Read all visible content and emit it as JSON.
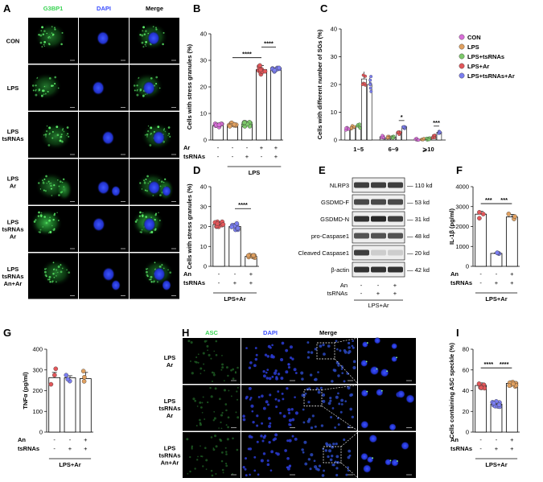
{
  "colors": {
    "green": "#39d353",
    "blue": "#3a4dff",
    "con": "#d96fd9",
    "lps": "#e0a060",
    "tsr": "#7cc96a",
    "ar": "#e2575a",
    "all": "#7b7ef0"
  },
  "panels": {
    "A": {
      "letter": "A",
      "cols": [
        "G3BP1",
        "DAPI",
        "Merge"
      ],
      "rows": [
        "CON",
        "LPS",
        "LPS\ntsRNAs",
        "LPS\nAr",
        "LPS\ntsRNAs\nAr",
        "LPS\ntsRNAs\nAn+Ar"
      ]
    },
    "H": {
      "letter": "H",
      "cols": [
        "ASC",
        "DAPI",
        "Merge"
      ],
      "rows": [
        "LPS\nAr",
        "LPS\ntsRNAs\nAr",
        "LPS\ntsRNAs\nAn+Ar"
      ]
    },
    "E": {
      "letter": "E",
      "bands": [
        {
          "name": "NLRP3",
          "kd": "110 kd"
        },
        {
          "name": "GSDMD-F",
          "kd": "53 kd"
        },
        {
          "name": "GSDMD-N",
          "kd": "31 kd"
        },
        {
          "name": "pro-Caspase1",
          "kd": "48 kd"
        },
        {
          "name": "Cleaved Caspase1",
          "kd": "20 kd"
        },
        {
          "name": "β-actin",
          "kd": "42 kd"
        }
      ],
      "conditions": [
        {
          "label": "An",
          "values": [
            "-",
            "-",
            "+"
          ]
        },
        {
          "label": "tsRNAs",
          "values": [
            "-",
            "+",
            "+"
          ]
        }
      ],
      "group": "LPS+Ar"
    }
  },
  "chart_data": [
    {
      "id": "B",
      "type": "bar",
      "ylabel": "Cells with stress granules (%)",
      "ylim": [
        0,
        40
      ],
      "yticks": [
        0,
        10,
        20,
        30,
        40
      ],
      "values": [
        5.5,
        5.8,
        6.0,
        26.5,
        26.5
      ],
      "errors": [
        0.5,
        0.7,
        0.9,
        1.5,
        0.6
      ],
      "colors": [
        "con",
        "lps",
        "tsr",
        "ar",
        "all"
      ],
      "conditions": [
        {
          "label": "Ar",
          "values": [
            "-",
            "-",
            "-",
            "+",
            "+"
          ]
        },
        {
          "label": "tsRNAs",
          "values": [
            "-",
            "-",
            "+",
            "-",
            "+"
          ]
        }
      ],
      "group": "LPS",
      "group_span": [
        1,
        4
      ],
      "sig": [
        {
          "a": 1,
          "b": 3,
          "label": "****",
          "y": 31
        },
        {
          "a": 3,
          "b": 4,
          "label": "****",
          "y": 35
        }
      ]
    },
    {
      "id": "C",
      "type": "bar",
      "ylabel": "Cells with different number of SGs (%)",
      "ylim": [
        0,
        40
      ],
      "yticks": [
        0,
        10,
        20,
        30,
        40
      ],
      "categories": [
        "1~5",
        "6~9",
        "⩾10"
      ],
      "legend": [
        "CON",
        "LPS",
        "LPS+tsRNAs",
        "LPS+Ar",
        "LPS+tsRNAs+Ar"
      ],
      "series": [
        {
          "name": "CON",
          "color": "con",
          "values": [
            4,
            1.2,
            0.3
          ]
        },
        {
          "name": "LPS",
          "color": "lps",
          "values": [
            4.5,
            0.8,
            0.3
          ]
        },
        {
          "name": "LPS+tsRNAs",
          "color": "tsr",
          "values": [
            5,
            1.0,
            0.3
          ]
        },
        {
          "name": "LPS+Ar",
          "color": "ar",
          "values": [
            22,
            2.5,
            1.2
          ]
        },
        {
          "name": "LPS+tsRNAs+Ar",
          "color": "all",
          "values": [
            20,
            4.8,
            2.8
          ]
        }
      ],
      "sig": [
        {
          "cat": 1,
          "a": 3,
          "b": 4,
          "label": "*",
          "y": 7
        },
        {
          "cat": 2,
          "a": 3,
          "b": 4,
          "label": "***",
          "y": 5
        }
      ]
    },
    {
      "id": "D",
      "type": "bar",
      "ylabel": "Cells with stress granules (%)",
      "ylim": [
        0,
        40
      ],
      "yticks": [
        0,
        10,
        20,
        30,
        40
      ],
      "values": [
        21,
        20,
        5
      ],
      "errors": [
        1.5,
        1.5,
        0.6
      ],
      "colors": [
        "ar",
        "all",
        "lps"
      ],
      "conditions": [
        {
          "label": "An",
          "values": [
            "-",
            "-",
            "+"
          ]
        },
        {
          "label": "tsRNAs",
          "values": [
            "-",
            "+",
            "+"
          ]
        }
      ],
      "group": "LPS+Ar",
      "sig": [
        {
          "a": 1,
          "b": 2,
          "label": "****",
          "y": 29
        }
      ]
    },
    {
      "id": "F",
      "type": "bar",
      "ylabel": "IL-1β (pg/ml)",
      "ylim": [
        0,
        4000
      ],
      "yticks": [
        0,
        1000,
        2000,
        3000,
        4000
      ],
      "values": [
        2620,
        650,
        2480
      ],
      "errors": [
        150,
        20,
        130
      ],
      "colors": [
        "ar",
        "all",
        "lps"
      ],
      "conditions": [
        {
          "label": "An",
          "values": [
            "-",
            "-",
            "+"
          ]
        },
        {
          "label": "tsRNAs",
          "values": [
            "-",
            "+",
            "+"
          ]
        }
      ],
      "group": "LPS+Ar",
      "sig": [
        {
          "a": 0,
          "b": 1,
          "label": "***",
          "y": 3150
        },
        {
          "a": 1,
          "b": 2,
          "label": "***",
          "y": 3150
        }
      ]
    },
    {
      "id": "G",
      "type": "bar",
      "ylabel": "TNFα (pg/ml)",
      "ylim": [
        0,
        400
      ],
      "yticks": [
        0,
        100,
        200,
        300,
        400
      ],
      "values": [
        263,
        262,
        258
      ],
      "errors": [
        25,
        10,
        30
      ],
      "colors": [
        "ar",
        "all",
        "lps"
      ],
      "conditions": [
        {
          "label": "An",
          "values": [
            "-",
            "-",
            "+"
          ]
        },
        {
          "label": "tsRNAs",
          "values": [
            "-",
            "+",
            "+"
          ]
        }
      ],
      "group": "LPS+Ar",
      "sig": []
    },
    {
      "id": "I",
      "type": "bar",
      "ylabel": "Cells containing ASC speckle (%)",
      "ylim": [
        0,
        80
      ],
      "yticks": [
        0,
        20,
        40,
        60,
        80
      ],
      "values": [
        45,
        27,
        47
      ],
      "errors": [
        2.5,
        2.5,
        2.5
      ],
      "colors": [
        "ar",
        "all",
        "lps"
      ],
      "conditions": [
        {
          "label": "An",
          "values": [
            "-",
            "-",
            "+"
          ]
        },
        {
          "label": "tsRNAs",
          "values": [
            "-",
            "+",
            "+"
          ]
        }
      ],
      "group": "LPS+Ar",
      "sig": [
        {
          "a": 0,
          "b": 1,
          "label": "****",
          "y": 62
        },
        {
          "a": 1,
          "b": 2,
          "label": "****",
          "y": 62
        }
      ]
    }
  ]
}
